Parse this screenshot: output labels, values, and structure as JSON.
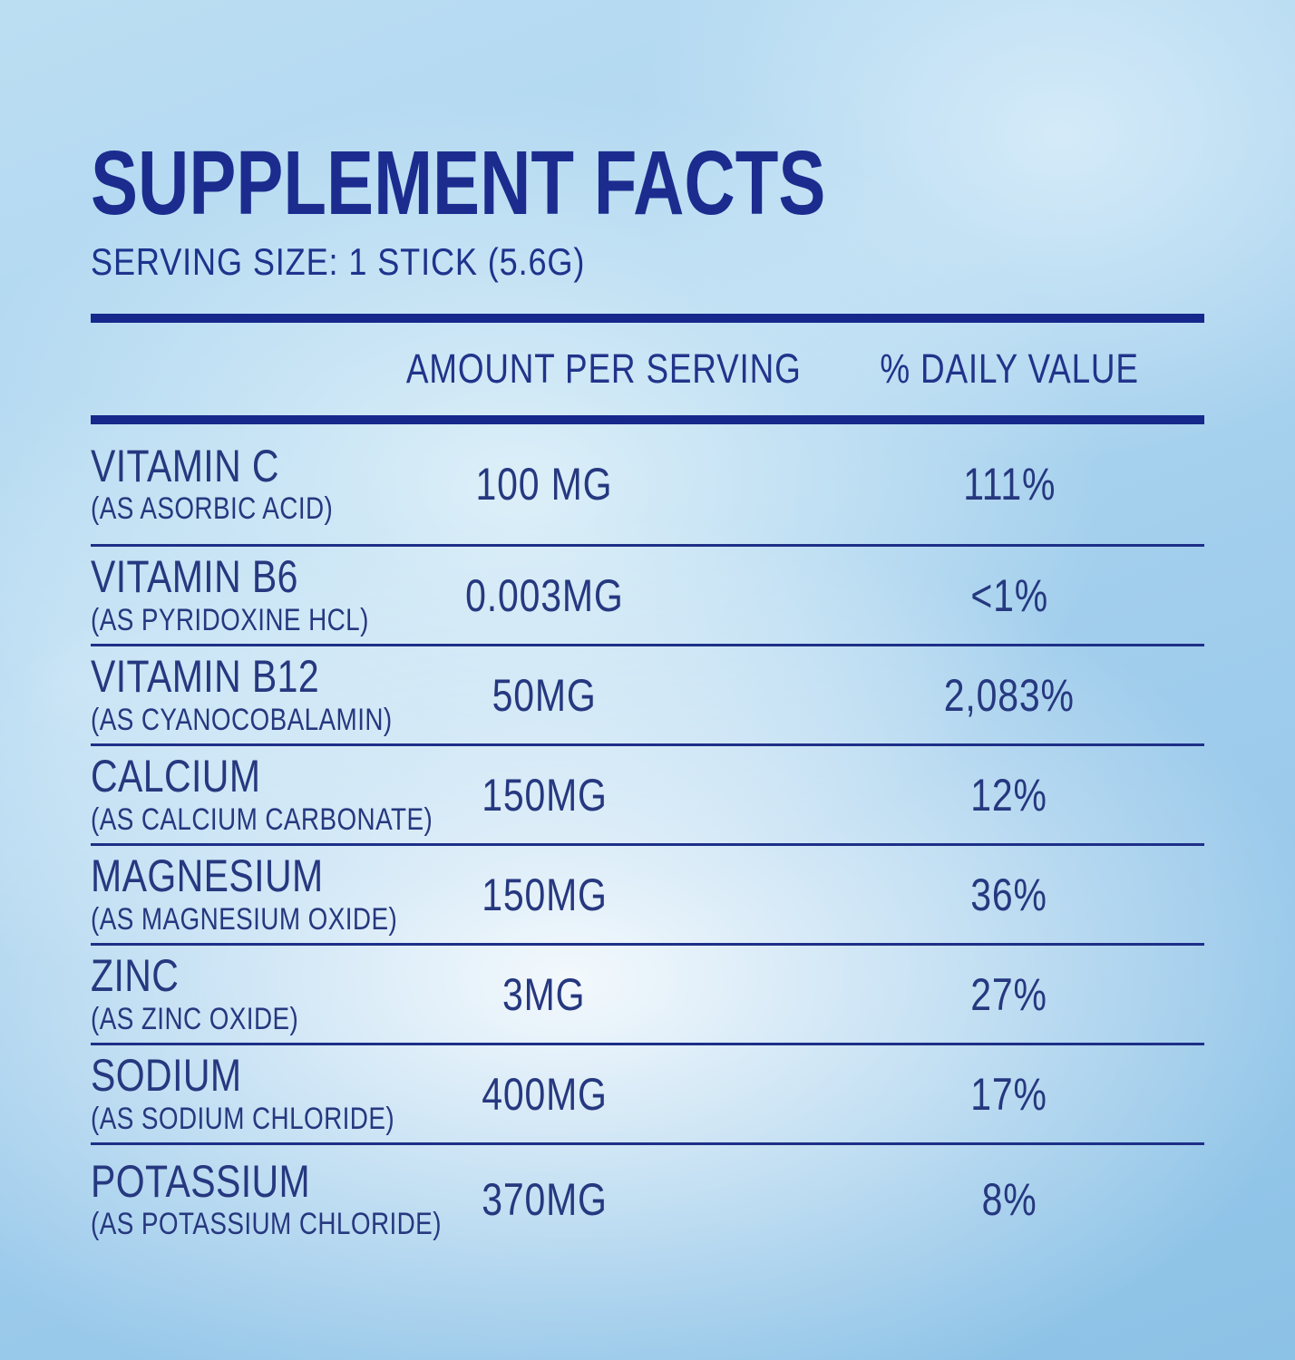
{
  "label": {
    "title": "SUPPLEMENT FACTS",
    "serving_size": "SERVING SIZE: 1 STICK (5.6G)",
    "columns": {
      "amount": "AMOUNT PER SERVING",
      "daily_value": "% DAILY VALUE"
    },
    "rows": [
      {
        "name": "VITAMIN C",
        "source": "(AS ASORBIC ACID)",
        "amount": "100 MG",
        "dv": "111%"
      },
      {
        "name": "VITAMIN B6",
        "source": "(AS PYRIDOXINE HCL)",
        "amount": "0.003MG",
        "dv": "<1%"
      },
      {
        "name": "VITAMIN B12",
        "source": "(AS CYANOCOBALAMIN)",
        "amount": "50MG",
        "dv": "2,083%"
      },
      {
        "name": "CALCIUM",
        "source": "(AS CALCIUM CARBONATE)",
        "amount": "150MG",
        "dv": "12%"
      },
      {
        "name": "MAGNESIUM",
        "source": "(AS MAGNESIUM OXIDE)",
        "amount": "150MG",
        "dv": "36%"
      },
      {
        "name": "ZINC",
        "source": "(AS ZINC OXIDE)",
        "amount": "3MG",
        "dv": "27%"
      },
      {
        "name": "SODIUM",
        "source": "(AS SODIUM CHLORIDE)",
        "amount": "400MG",
        "dv": "17%"
      },
      {
        "name": "POTASSIUM",
        "source": "(AS POTASSIUM CHLORIDE)",
        "amount": "370MG",
        "dv": "8%"
      }
    ],
    "colors": {
      "navy_title": "#1b2c8e",
      "navy_rule": "#17288c",
      "navy_text": "#26387f",
      "background_blue": "#a9d3ee"
    }
  }
}
